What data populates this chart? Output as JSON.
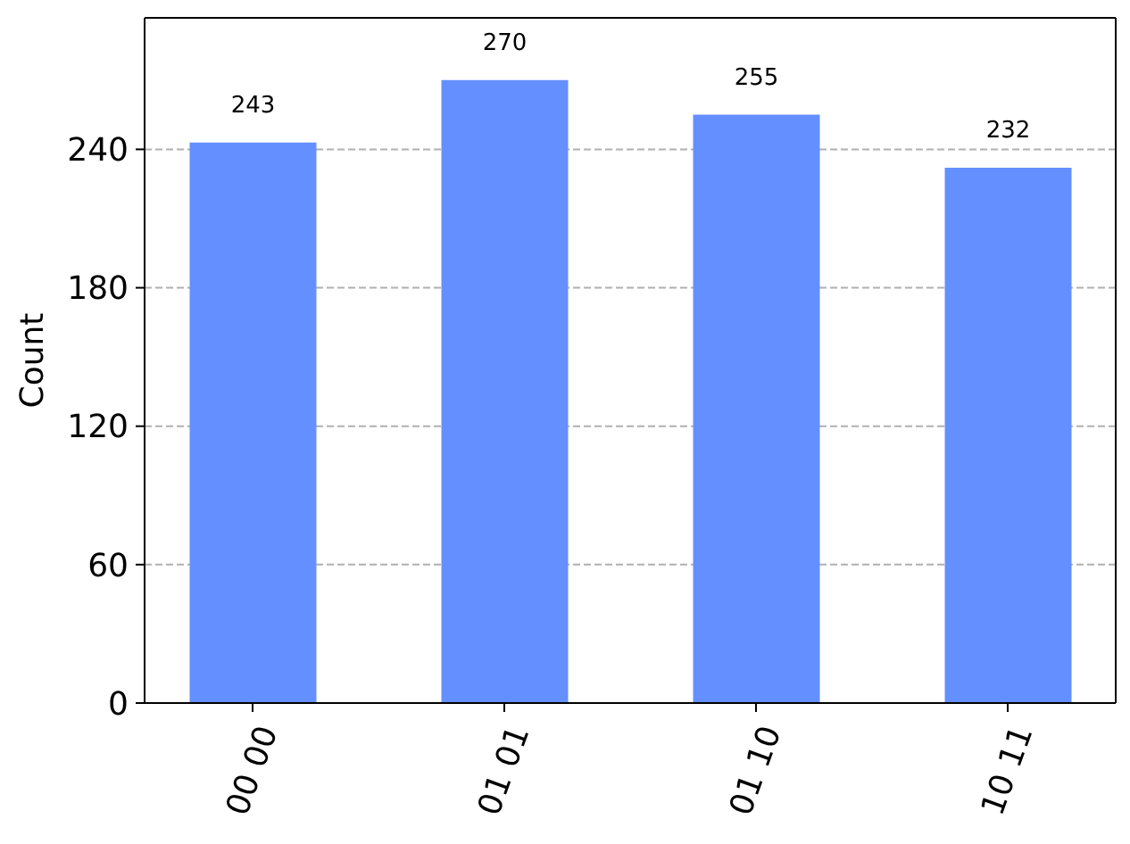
{
  "chart_data": {
    "type": "bar",
    "ylabel": "Count",
    "categories": [
      "00 00",
      "01 01",
      "01 10",
      "10 11"
    ],
    "values": [
      243,
      270,
      255,
      232
    ],
    "color": "#648fff",
    "ylim": [
      0,
      297
    ],
    "yticks": [
      0,
      60,
      120,
      180,
      240
    ],
    "grid": "y",
    "data_labels": true
  }
}
